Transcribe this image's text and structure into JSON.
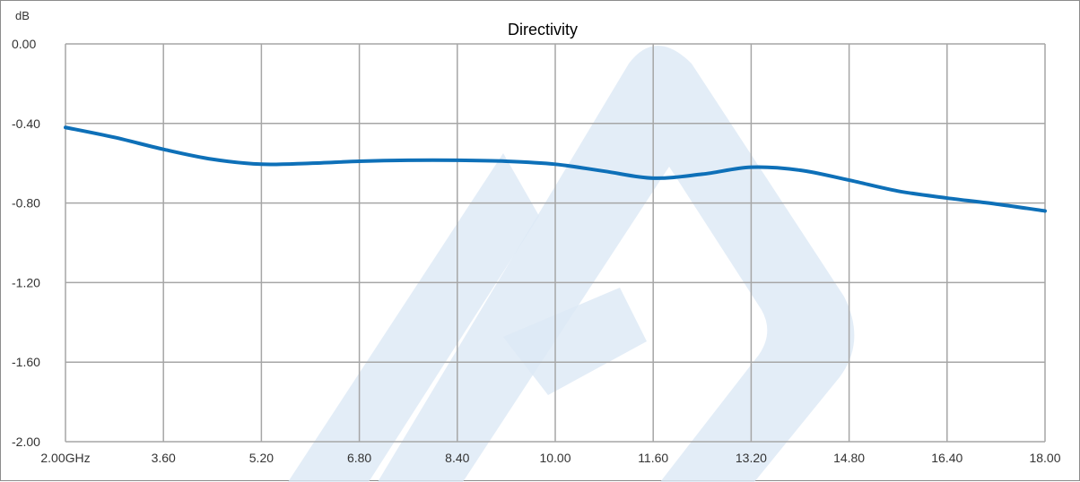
{
  "chart_data": {
    "type": "line",
    "title": "Directivity",
    "ylabel": "dB",
    "xlabel": "",
    "x_tick_labels": [
      "2.00GHz",
      "3.60",
      "5.20",
      "6.80",
      "8.40",
      "10.00",
      "11.60",
      "13.20",
      "14.80",
      "16.40",
      "18.00"
    ],
    "y_tick_labels": [
      "0.00",
      "-0.40",
      "-0.80",
      "-1.20",
      "-1.60",
      "-2.00"
    ],
    "x_ticks": [
      2.0,
      3.6,
      5.2,
      6.8,
      8.4,
      10.0,
      11.6,
      13.2,
      14.8,
      16.4,
      18.0
    ],
    "y_ticks": [
      0.0,
      -0.4,
      -0.8,
      -1.2,
      -1.6,
      -2.0
    ],
    "xlim": [
      2.0,
      18.0
    ],
    "ylim": [
      -2.0,
      0.0
    ],
    "grid": true,
    "legend": "none",
    "series": [
      {
        "color": "#1f77b4",
        "x": [
          2.0,
          2.8,
          3.6,
          4.4,
          5.2,
          6.0,
          6.8,
          7.6,
          8.4,
          9.2,
          10.0,
          10.8,
          11.6,
          12.4,
          13.2,
          14.0,
          14.8,
          15.6,
          16.4,
          17.2,
          18.0
        ],
        "y": [
          -0.42,
          -0.47,
          -0.53,
          -0.58,
          -0.605,
          -0.6,
          -0.59,
          -0.585,
          -0.585,
          -0.59,
          -0.605,
          -0.64,
          -0.675,
          -0.655,
          -0.62,
          -0.635,
          -0.685,
          -0.74,
          -0.775,
          -0.805,
          -0.84
        ]
      }
    ]
  },
  "colors": {
    "line": "#0e70b8",
    "grid": "#a6a6a6",
    "plot_border": "#a6a6a6",
    "frame_border": "#8c8c8c",
    "watermark": "#dce9f5"
  }
}
